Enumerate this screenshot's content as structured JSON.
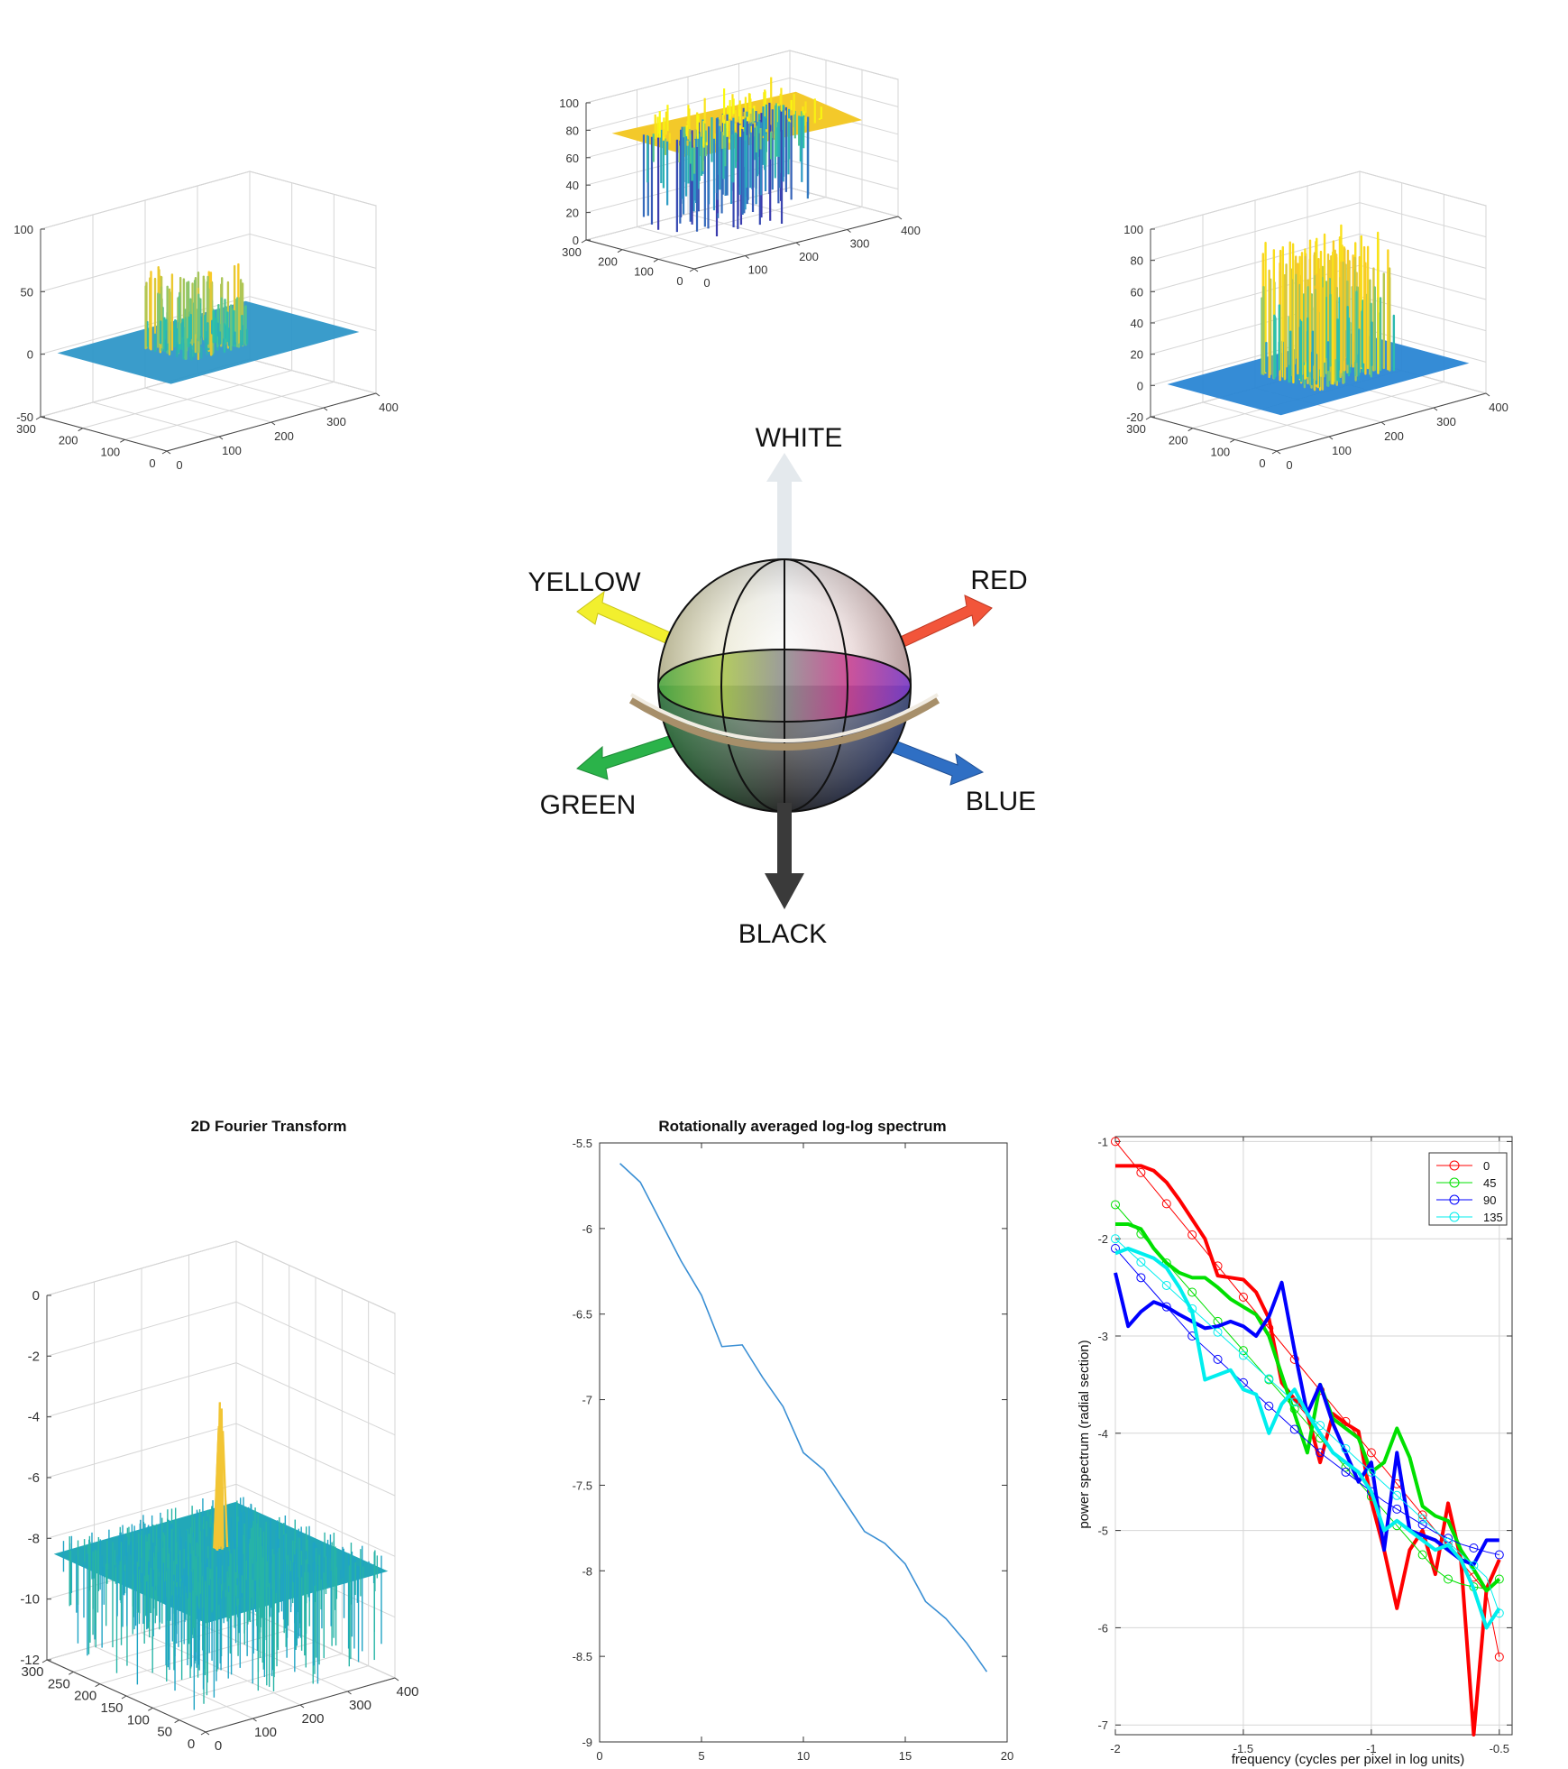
{
  "chart_data": [
    {
      "id": "surface_top",
      "type": "surface3d",
      "title": "",
      "x_ticks": [
        "0",
        "100",
        "200",
        "300",
        "400"
      ],
      "y_ticks": [
        "0",
        "100",
        "200",
        "300"
      ],
      "z_ticks": [
        "0",
        "20",
        "40",
        "60",
        "80",
        "100"
      ],
      "xlim": [
        0,
        400
      ],
      "ylim": [
        0,
        300
      ],
      "zlim": [
        0,
        100
      ],
      "dominant_level": 75,
      "colormap": [
        "#3e26a8",
        "#2f97c8",
        "#2dc2a8",
        "#f9c926",
        "#f9fb0e"
      ]
    },
    {
      "id": "surface_left",
      "type": "surface3d",
      "title": "",
      "x_ticks": [
        "0",
        "100",
        "200",
        "300",
        "400"
      ],
      "y_ticks": [
        "0",
        "100",
        "200",
        "300"
      ],
      "z_ticks": [
        "-50",
        "0",
        "50",
        "100"
      ],
      "xlim": [
        0,
        400
      ],
      "ylim": [
        0,
        300
      ],
      "zlim": [
        -50,
        100
      ],
      "dominant_level": 0,
      "colormap": [
        "#3e26a8",
        "#2f97c8",
        "#2dc2a8",
        "#f9c926",
        "#f9fb0e"
      ]
    },
    {
      "id": "surface_right",
      "type": "surface3d",
      "title": "",
      "x_ticks": [
        "0",
        "100",
        "200",
        "300",
        "400"
      ],
      "y_ticks": [
        "0",
        "100",
        "200",
        "300"
      ],
      "z_ticks": [
        "-20",
        "0",
        "20",
        "40",
        "60",
        "80",
        "100"
      ],
      "xlim": [
        0,
        400
      ],
      "ylim": [
        0,
        300
      ],
      "zlim": [
        -20,
        100
      ],
      "dominant_level": 0,
      "colormap": [
        "#3e26a8",
        "#2f97c8",
        "#2dc2a8",
        "#f9c926",
        "#f9fb0e"
      ]
    },
    {
      "id": "fourier_surface",
      "type": "surface3d",
      "title": "2D Fourier Transform",
      "x_ticks": [
        "0",
        "100",
        "200",
        "300",
        "400"
      ],
      "y_ticks": [
        "0",
        "50",
        "100",
        "150",
        "200",
        "250",
        "300"
      ],
      "z_ticks": [
        "-12",
        "-10",
        "-8",
        "-6",
        "-4",
        "-2",
        "0"
      ],
      "xlim": [
        0,
        400
      ],
      "ylim": [
        0,
        300
      ],
      "zlim": [
        -12,
        0
      ],
      "peak_value": -3.2,
      "noise_floor": -8.5,
      "colormap": [
        "#2aa0d0",
        "#20b2aa",
        "#f9c926"
      ]
    },
    {
      "id": "loglog_spectrum",
      "type": "line",
      "title": "Rotationally averaged log-log spectrum",
      "xlabel": "",
      "ylabel": "",
      "xlim": [
        0,
        20
      ],
      "ylim": [
        -9,
        -5.5
      ],
      "x_ticks": [
        "0",
        "5",
        "10",
        "15",
        "20"
      ],
      "y_ticks": [
        "-5.5",
        "-6",
        "-6.5",
        "-7",
        "-7.5",
        "-8",
        "-8.5",
        "-9"
      ],
      "grid": false,
      "series": [
        {
          "color": "#3a8fd4",
          "x": [
            1,
            2,
            3,
            4,
            5,
            6,
            7,
            8,
            9,
            10,
            11,
            12,
            13,
            14,
            15,
            16,
            17,
            18,
            19
          ],
          "y": [
            -5.62,
            -5.73,
            -5.96,
            -6.19,
            -6.39,
            -6.69,
            -6.68,
            -6.87,
            -7.04,
            -7.31,
            -7.41,
            -7.59,
            -7.77,
            -7.84,
            -7.96,
            -8.18,
            -8.28,
            -8.42,
            -8.59
          ]
        }
      ]
    },
    {
      "id": "radial_power_spectrum",
      "type": "line",
      "title": "",
      "xlabel": "frequency (cycles per pixel in log units)",
      "ylabel": "power spectrum (radial section)",
      "xlim": [
        -2,
        -0.45
      ],
      "ylim": [
        -7.1,
        -0.95
      ],
      "x_ticks": [
        "-2",
        "-1.5",
        "-1",
        "-0.5"
      ],
      "x_tick_values": [
        -2,
        -1.5,
        -1,
        -0.5
      ],
      "y_ticks": [
        "-1",
        "-2",
        "-3",
        "-4",
        "-5",
        "-6",
        "-7"
      ],
      "y_tick_values": [
        -1,
        -2,
        -3,
        -4,
        -5,
        -6,
        -7
      ],
      "grid": true,
      "legend_position": "top-right",
      "series": [
        {
          "name": "0",
          "color": "#ff0000",
          "x": [
            -2,
            -1.95,
            -1.9,
            -1.85,
            -1.8,
            -1.75,
            -1.7,
            -1.65,
            -1.6,
            -1.55,
            -1.5,
            -1.45,
            -1.4,
            -1.35,
            -1.3,
            -1.25,
            -1.2,
            -1.15,
            -1.1,
            -1.05,
            -1.0,
            -0.95,
            -0.9,
            -0.85,
            -0.8,
            -0.75,
            -0.7,
            -0.65,
            -0.6,
            -0.55,
            -0.5
          ],
          "y": [
            -1.25,
            -1.25,
            -1.25,
            -1.3,
            -1.42,
            -1.6,
            -1.8,
            -2.0,
            -2.38,
            -2.4,
            -2.42,
            -2.55,
            -2.82,
            -3.48,
            -3.65,
            -3.8,
            -4.3,
            -3.8,
            -3.9,
            -3.98,
            -4.7,
            -5.2,
            -5.8,
            -5.2,
            -5.0,
            -5.45,
            -4.72,
            -5.3,
            -7.1,
            -5.6,
            -5.3
          ],
          "fit_y": [
            -1.0,
            -1.16,
            -1.32,
            -1.48,
            -1.64,
            -1.8,
            -1.96,
            -2.12,
            -2.28,
            -2.44,
            -2.6,
            -2.76,
            -2.92,
            -3.08,
            -3.24,
            -3.4,
            -3.56,
            -3.72,
            -3.88,
            -4.04,
            -4.2,
            -4.36,
            -4.52,
            -4.68,
            -4.84,
            -5.0,
            -5.16,
            -5.32,
            -5.48,
            -5.64,
            -6.3
          ]
        },
        {
          "name": "45",
          "color": "#00e000",
          "x": [
            -2,
            -1.95,
            -1.9,
            -1.85,
            -1.8,
            -1.75,
            -1.7,
            -1.65,
            -1.6,
            -1.55,
            -1.5,
            -1.45,
            -1.4,
            -1.35,
            -1.3,
            -1.25,
            -1.2,
            -1.15,
            -1.1,
            -1.05,
            -1.0,
            -0.95,
            -0.9,
            -0.85,
            -0.8,
            -0.75,
            -0.7,
            -0.65,
            -0.6,
            -0.55,
            -0.5
          ],
          "y": [
            -1.85,
            -1.85,
            -1.9,
            -2.1,
            -2.25,
            -2.35,
            -2.4,
            -2.4,
            -2.5,
            -2.62,
            -2.7,
            -2.78,
            -3.0,
            -3.4,
            -3.8,
            -4.2,
            -3.5,
            -3.85,
            -3.95,
            -4.05,
            -4.4,
            -4.3,
            -3.95,
            -4.25,
            -4.75,
            -4.85,
            -4.9,
            -5.2,
            -5.4,
            -5.62,
            -5.5
          ],
          "fit_y": [
            -1.65,
            -1.8,
            -1.95,
            -2.1,
            -2.25,
            -2.4,
            -2.55,
            -2.7,
            -2.85,
            -3.0,
            -3.15,
            -3.3,
            -3.45,
            -3.6,
            -3.75,
            -3.9,
            -4.05,
            -4.2,
            -4.35,
            -4.5,
            -4.65,
            -4.8,
            -4.95,
            -5.1,
            -5.25,
            -5.4,
            -5.5,
            -5.55,
            -5.58,
            -5.6,
            -5.5
          ]
        },
        {
          "name": "90",
          "color": "#0000ff",
          "x": [
            -2,
            -1.95,
            -1.9,
            -1.85,
            -1.8,
            -1.75,
            -1.7,
            -1.65,
            -1.6,
            -1.55,
            -1.5,
            -1.45,
            -1.4,
            -1.35,
            -1.3,
            -1.25,
            -1.2,
            -1.15,
            -1.1,
            -1.05,
            -1.0,
            -0.95,
            -0.9,
            -0.85,
            -0.8,
            -0.75,
            -0.7,
            -0.65,
            -0.6,
            -0.55,
            -0.5
          ],
          "y": [
            -2.35,
            -2.9,
            -2.75,
            -2.65,
            -2.7,
            -2.78,
            -2.85,
            -2.92,
            -2.9,
            -2.85,
            -2.9,
            -3.0,
            -2.8,
            -2.45,
            -3.15,
            -3.8,
            -3.5,
            -3.9,
            -4.2,
            -4.5,
            -4.3,
            -5.2,
            -4.2,
            -5.0,
            -5.05,
            -5.1,
            -5.2,
            -5.3,
            -5.35,
            -5.1,
            -5.1
          ],
          "fit_y": [
            -2.1,
            -2.25,
            -2.4,
            -2.55,
            -2.7,
            -2.85,
            -3.0,
            -3.12,
            -3.24,
            -3.36,
            -3.48,
            -3.6,
            -3.72,
            -3.84,
            -3.96,
            -4.08,
            -4.2,
            -4.3,
            -4.4,
            -4.5,
            -4.6,
            -4.7,
            -4.78,
            -4.86,
            -4.94,
            -5.02,
            -5.08,
            -5.14,
            -5.18,
            -5.22,
            -5.25
          ]
        },
        {
          "name": "135",
          "color": "#00eeee",
          "x": [
            -2,
            -1.95,
            -1.9,
            -1.85,
            -1.8,
            -1.75,
            -1.7,
            -1.65,
            -1.6,
            -1.55,
            -1.5,
            -1.45,
            -1.4,
            -1.35,
            -1.3,
            -1.25,
            -1.2,
            -1.15,
            -1.1,
            -1.05,
            -1.0,
            -0.95,
            -0.9,
            -0.85,
            -0.8,
            -0.75,
            -0.7,
            -0.65,
            -0.6,
            -0.55,
            -0.5
          ],
          "y": [
            -2.15,
            -2.1,
            -2.15,
            -2.2,
            -2.3,
            -2.5,
            -2.75,
            -3.45,
            -3.4,
            -3.35,
            -3.55,
            -3.6,
            -4.0,
            -3.7,
            -3.55,
            -3.8,
            -4.0,
            -4.2,
            -4.3,
            -4.4,
            -4.6,
            -5.0,
            -4.9,
            -5.0,
            -5.1,
            -5.2,
            -5.15,
            -5.3,
            -5.6,
            -6.0,
            -5.8
          ],
          "fit_y": [
            -2.0,
            -2.12,
            -2.24,
            -2.36,
            -2.48,
            -2.6,
            -2.72,
            -2.84,
            -2.96,
            -3.08,
            -3.2,
            -3.32,
            -3.44,
            -3.56,
            -3.68,
            -3.8,
            -3.92,
            -4.04,
            -4.16,
            -4.28,
            -4.4,
            -4.52,
            -4.64,
            -4.76,
            -4.88,
            -5.0,
            -5.12,
            -5.24,
            -5.36,
            -5.48,
            -5.85
          ]
        }
      ]
    }
  ],
  "color_sphere": {
    "labels": {
      "white": "WHITE",
      "black": "BLACK",
      "yellow": "YELLOW",
      "red": "RED",
      "green": "GREEN",
      "blue": "BLUE"
    },
    "arrow_colors": {
      "white": "#e8eef2",
      "black": "#3a3a3a",
      "yellow": "#f2ef2e",
      "red": "#f2553a",
      "green": "#2bb34a",
      "blue": "#2f6fc4"
    }
  }
}
